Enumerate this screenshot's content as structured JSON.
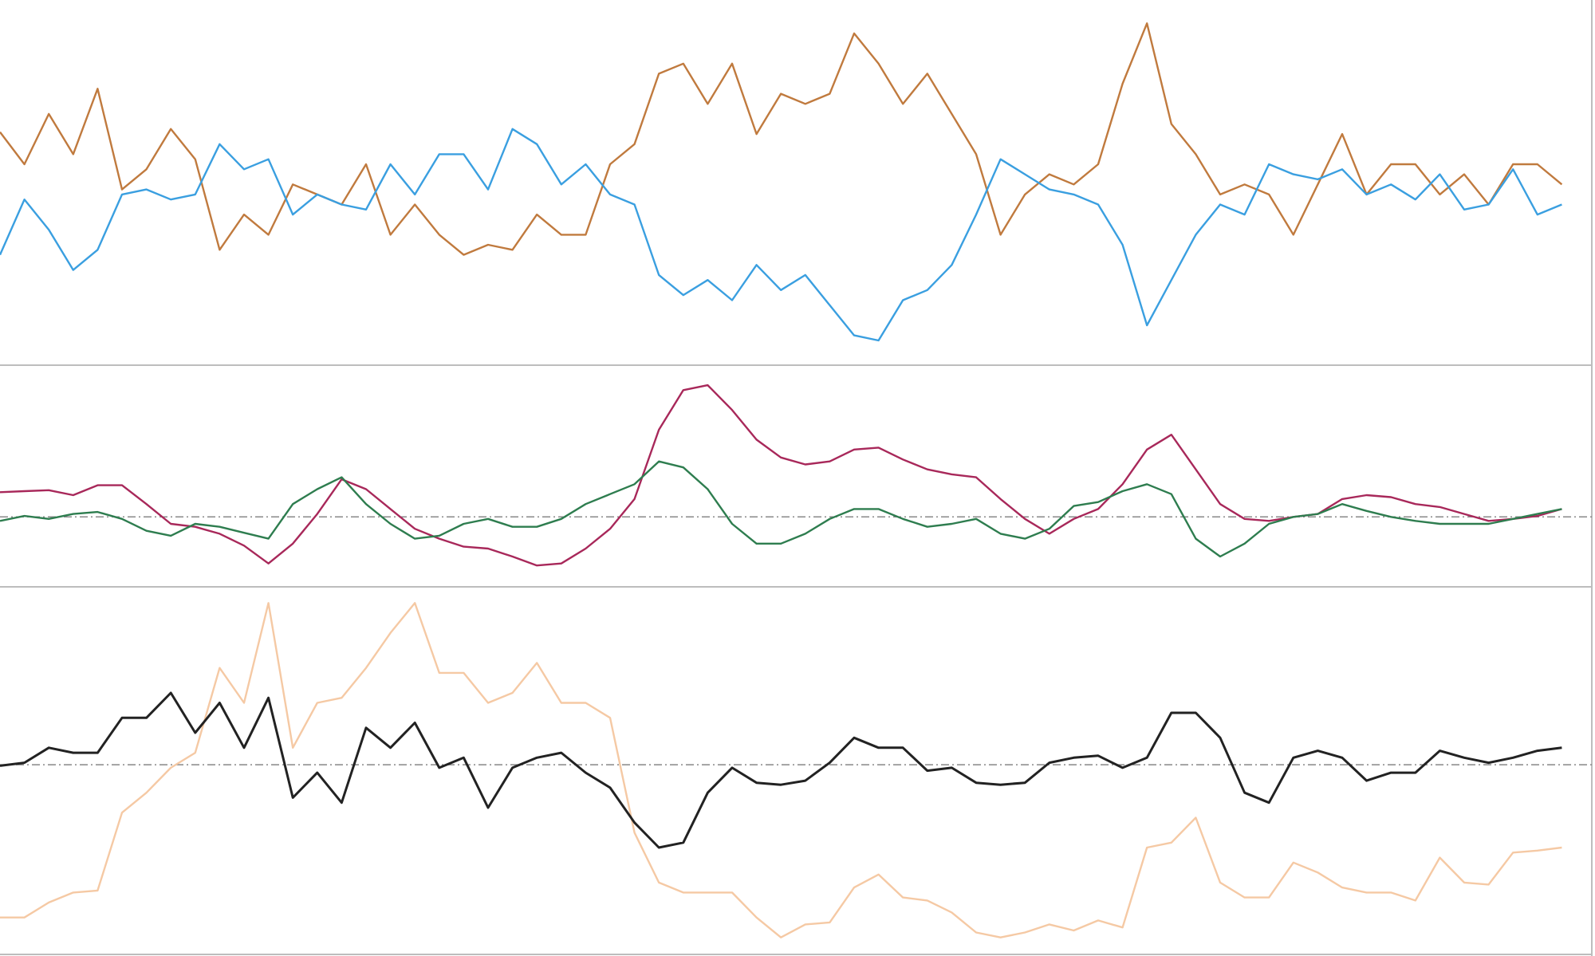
{
  "chart_data": [
    {
      "type": "line",
      "ylim": [
        0,
        358
      ],
      "series": [
        {
          "color": "#c07a3e",
          "values": [
            230,
            198,
            248,
            208,
            273,
            173,
            193,
            233,
            203,
            113,
            148,
            128,
            178,
            168,
            158,
            198,
            128,
            158,
            128,
            108,
            118,
            113,
            148,
            128,
            128,
            198,
            218,
            288,
            298,
            258,
            298,
            228,
            268,
            258,
            268,
            328,
            298,
            258,
            288,
            248,
            208,
            128,
            168,
            188,
            178,
            198,
            278,
            338,
            238,
            208,
            168,
            178,
            168,
            128,
            178,
            228,
            168,
            198,
            198,
            168,
            188,
            158,
            198,
            198,
            178
          ]
        },
        {
          "color": "#3a9fe0",
          "values": [
            108,
            163,
            133,
            93,
            113,
            168,
            173,
            163,
            168,
            218,
            193,
            203,
            148,
            168,
            158,
            153,
            198,
            168,
            208,
            208,
            173,
            233,
            218,
            178,
            198,
            168,
            158,
            88,
            68,
            83,
            63,
            98,
            73,
            88,
            58,
            28,
            23,
            63,
            73,
            98,
            148,
            203,
            188,
            173,
            168,
            158,
            118,
            38,
            83,
            128,
            158,
            148,
            198,
            188,
            183,
            193,
            168,
            178,
            163,
            188,
            153,
            158,
            193,
            148,
            158
          ]
        }
      ]
    },
    {
      "type": "line",
      "ylim": [
        0,
        219
      ],
      "reference_line": 69,
      "series": [
        {
          "color": "#a8285a",
          "values": [
            94,
            95,
            96,
            91,
            101,
            101,
            82,
            62,
            59,
            52,
            40,
            22,
            42,
            72,
            107,
            97,
            77,
            57,
            47,
            39,
            37,
            29,
            20,
            22,
            37,
            57,
            87,
            157,
            197,
            202,
            177,
            147,
            129,
            122,
            125,
            137,
            139,
            127,
            117,
            112,
            109,
            87,
            67,
            52,
            67,
            77,
            102,
            137,
            152,
            117,
            82,
            67,
            65,
            69,
            72,
            87,
            91,
            89,
            82,
            79,
            72,
            65,
            67,
            70,
            77
          ]
        },
        {
          "color": "#2e7d4f",
          "values": [
            65,
            70,
            67,
            72,
            74,
            67,
            55,
            50,
            62,
            59,
            53,
            47,
            82,
            97,
            109,
            82,
            62,
            47,
            50,
            62,
            67,
            59,
            59,
            67,
            82,
            92,
            102,
            125,
            119,
            97,
            62,
            42,
            42,
            52,
            67,
            77,
            77,
            67,
            59,
            62,
            67,
            52,
            47,
            57,
            80,
            84,
            95,
            102,
            92,
            47,
            29,
            42,
            62,
            69,
            72,
            82,
            75,
            69,
            65,
            62,
            62,
            62,
            67,
            72,
            77
          ]
        }
      ]
    },
    {
      "type": "line",
      "ylim": [
        0,
        361
      ],
      "reference_line": 186,
      "series": [
        {
          "color": "#f5c9a4",
          "values": [
            33,
            33,
            48,
            58,
            60,
            138,
            158,
            183,
            198,
            283,
            248,
            348,
            203,
            248,
            253,
            283,
            318,
            348,
            278,
            278,
            248,
            258,
            288,
            248,
            248,
            233,
            118,
            68,
            58,
            58,
            58,
            33,
            13,
            26,
            28,
            63,
            76,
            53,
            50,
            38,
            18,
            13,
            18,
            26,
            20,
            30,
            23,
            103,
            108,
            133,
            68,
            53,
            53,
            88,
            78,
            63,
            58,
            58,
            50,
            93,
            68,
            66,
            98,
            100,
            103
          ]
        },
        {
          "color": "#222222",
          "values": [
            185,
            188,
            203,
            198,
            198,
            233,
            233,
            258,
            218,
            248,
            203,
            253,
            153,
            178,
            148,
            223,
            203,
            228,
            183,
            193,
            143,
            183,
            193,
            198,
            178,
            163,
            128,
            103,
            108,
            158,
            183,
            168,
            166,
            170,
            188,
            213,
            203,
            203,
            180,
            183,
            168,
            166,
            168,
            188,
            193,
            195,
            183,
            193,
            238,
            238,
            213,
            158,
            148,
            193,
            200,
            193,
            170,
            178,
            178,
            200,
            193,
            188,
            193,
            200,
            203
          ]
        }
      ]
    }
  ]
}
